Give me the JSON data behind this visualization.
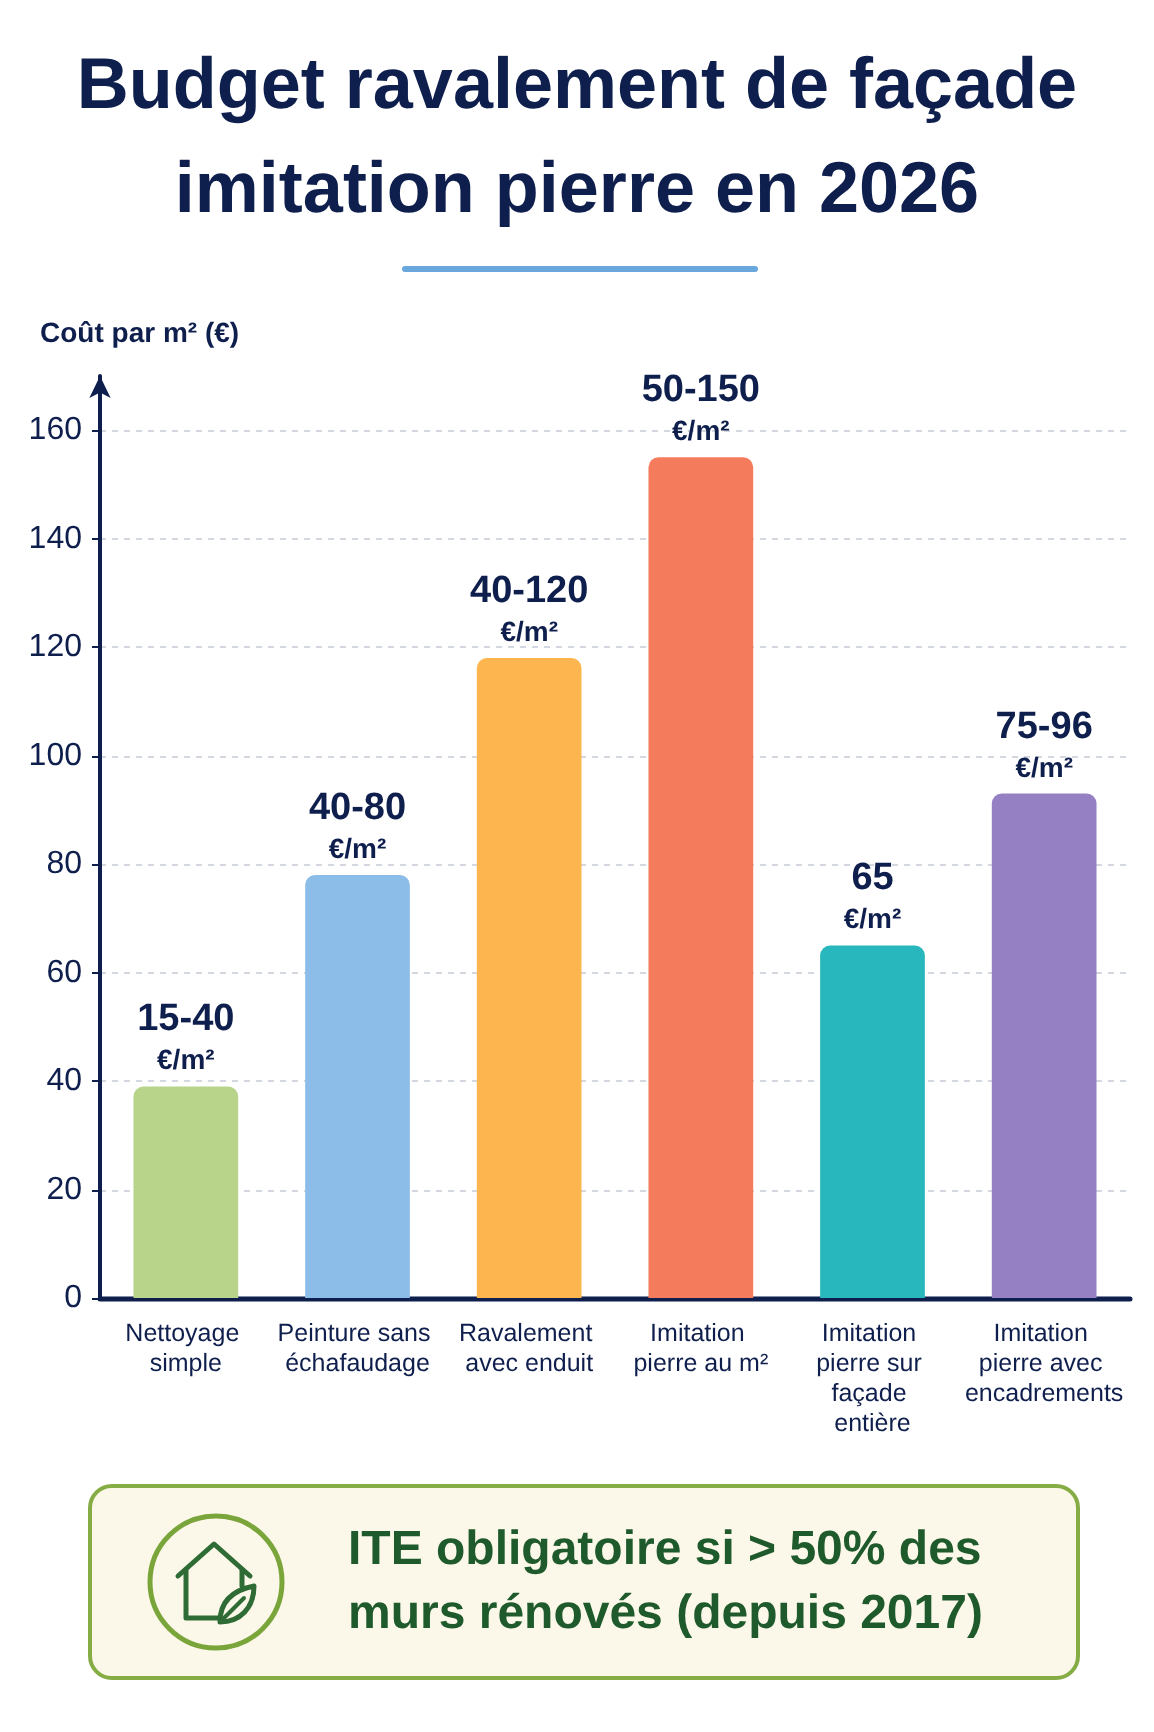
{
  "chart_data": {
    "type": "bar",
    "title": "Budget ravalement de façade imitation pierre en 2026",
    "ylabel": "Coût par m² (€)",
    "categories": [
      "Nettoyage simple",
      "Peinture sans échafaudage",
      "Ravalement avec enduit",
      "Imitation pierre au m²",
      "Imitation pierre sur façade entière",
      "Imitation pierre avec encadrements"
    ],
    "values": [
      39,
      78,
      118,
      155,
      65,
      93
    ],
    "colors": [
      "#b7d48a",
      "#8cbde8",
      "#fdb64f",
      "#f47b5b",
      "#27b7bc",
      "#9580c4"
    ],
    "value_labels": [
      "15-40\n€/m²",
      "40-80\n€/m²",
      "40-120\n€/m²",
      "50-150\n€/m²",
      "65\n€/m²",
      "75-96\n€/m²"
    ],
    "ylim": [
      0,
      170
    ],
    "yticks": [
      0,
      20,
      40,
      60,
      80,
      100,
      120,
      140,
      160
    ],
    "grid": "y",
    "annotations": [
      "ITE obligatoire si > 50% des murs rénovés (depuis 2017)"
    ]
  }
}
